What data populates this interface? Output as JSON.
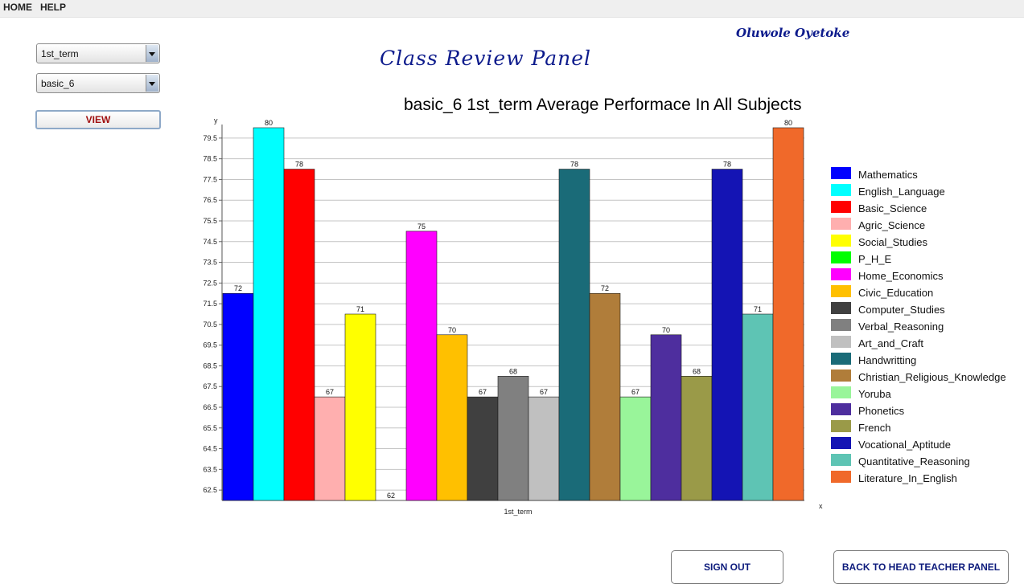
{
  "menu": {
    "items": [
      "HOME",
      "HELP"
    ]
  },
  "controls": {
    "term_select": {
      "value": "1st_term"
    },
    "class_select": {
      "value": "basic_6"
    },
    "view_label": "VIEW"
  },
  "header": {
    "author": "Oluwole Oyetoke",
    "panel_title": "Class Review Panel"
  },
  "buttons": {
    "sign_out": "SIGN OUT",
    "back": "BACK TO HEAD TEACHER PANEL"
  },
  "chart_data": {
    "type": "bar",
    "title": "basic_6 1st_term Average Performace In All Subjects",
    "xlabel": "x",
    "ylabel": "y",
    "category_label": "1st_term",
    "ylim": [
      62,
      80
    ],
    "yticks": [
      62.5,
      63.5,
      64.5,
      65.5,
      66.5,
      67.5,
      68.5,
      69.5,
      70.5,
      71.5,
      72.5,
      73.5,
      74.5,
      75.5,
      76.5,
      77.5,
      78.5,
      79.5
    ],
    "grid": true,
    "legend_position": "right",
    "series": [
      {
        "name": "Mathematics",
        "value": 72,
        "color": "#0000ff"
      },
      {
        "name": "English_Language",
        "value": 80,
        "color": "#00ffff"
      },
      {
        "name": "Basic_Science",
        "value": 78,
        "color": "#ff0000"
      },
      {
        "name": "Agric_Science",
        "value": 67,
        "color": "#ffafaf"
      },
      {
        "name": "Social_Studies",
        "value": 71,
        "color": "#ffff00"
      },
      {
        "name": "P_H_E",
        "value": 62,
        "color": "#00ff00"
      },
      {
        "name": "Home_Economics",
        "value": 75,
        "color": "#ff00ff"
      },
      {
        "name": "Civic_Education",
        "value": 70,
        "color": "#ffc000"
      },
      {
        "name": "Computer_Studies",
        "value": 67,
        "color": "#404040"
      },
      {
        "name": "Verbal_Reasoning",
        "value": 68,
        "color": "#808080"
      },
      {
        "name": "Art_and_Craft",
        "value": 67,
        "color": "#c0c0c0"
      },
      {
        "name": "Handwritting",
        "value": 78,
        "color": "#1a6b78"
      },
      {
        "name": "Christian_Religious_Knowledge",
        "value": 72,
        "color": "#b07d3a"
      },
      {
        "name": "Yoruba",
        "value": 67,
        "color": "#99f59a"
      },
      {
        "name": "Phonetics",
        "value": 70,
        "color": "#4e2e9e"
      },
      {
        "name": "French",
        "value": 68,
        "color": "#9a9a48"
      },
      {
        "name": "Vocational_Aptitude",
        "value": 78,
        "color": "#1414b4"
      },
      {
        "name": "Quantitative_Reasoning",
        "value": 71,
        "color": "#5ec4b4"
      },
      {
        "name": "Literature_In_English",
        "value": 80,
        "color": "#f0692a"
      }
    ]
  }
}
